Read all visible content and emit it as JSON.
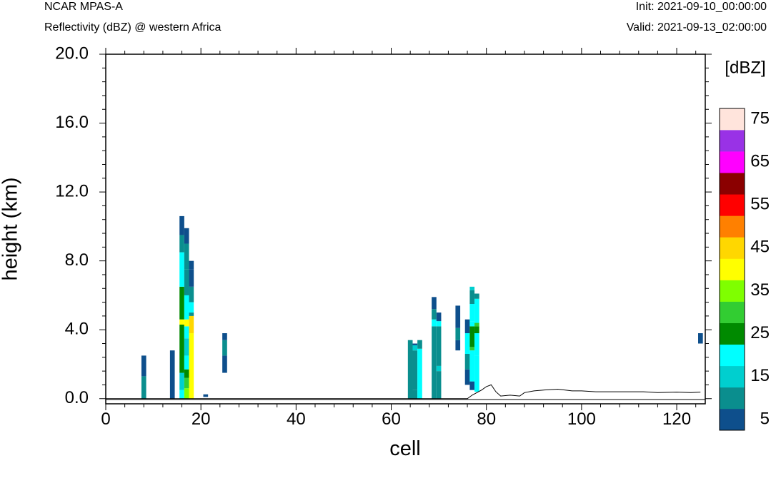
{
  "header": {
    "model": "NCAR MPAS-A",
    "field": "Reflectivity (dBZ) @ western Africa",
    "init": "Init: 2021-09-10_00:00:00",
    "valid": "Valid: 2021-09-13_02:00:00"
  },
  "chart_data": {
    "type": "heatmap",
    "title": "Reflectivity (dBZ) @ western Africa",
    "xlabel": "cell",
    "ylabel": "height (km)",
    "xlim": [
      0,
      126
    ],
    "ylim": [
      -0.3,
      20.0
    ],
    "x_ticks": [
      0,
      20,
      40,
      60,
      80,
      100,
      120
    ],
    "x_tick_labels": [
      "0",
      "20",
      "40",
      "60",
      "80",
      "100",
      "120"
    ],
    "y_ticks": [
      0,
      4,
      8,
      12,
      16,
      20
    ],
    "y_tick_labels": [
      "0.0",
      "4.0",
      "8.0",
      "12.0",
      "16.0",
      "20.0"
    ],
    "colorbar": {
      "units": "[dBZ]",
      "levels": [
        5,
        10,
        15,
        20,
        25,
        30,
        35,
        40,
        45,
        50,
        55,
        60,
        65,
        70,
        75
      ],
      "tick_labels": [
        "5",
        "15",
        "25",
        "35",
        "45",
        "55",
        "65",
        "75"
      ],
      "colors": [
        "#0e4f8c",
        "#0a8e8e",
        "#00cfcf",
        "#00ffff",
        "#008a00",
        "#32cd32",
        "#7fff00",
        "#ffff00",
        "#ffd700",
        "#ff8000",
        "#ff0000",
        "#8b0000",
        "#ff00ff",
        "#9932e6",
        "#ffe4dc"
      ]
    },
    "cells": [
      {
        "x": 8,
        "segments": [
          [
            0,
            1.3,
            10
          ],
          [
            1.3,
            2.5,
            5
          ]
        ]
      },
      {
        "x": 14,
        "segments": [
          [
            0,
            2.8,
            5
          ]
        ]
      },
      {
        "x": 16,
        "segments": [
          [
            0,
            0.5,
            20
          ],
          [
            0.5,
            1.5,
            15
          ],
          [
            1.5,
            4.3,
            25
          ],
          [
            4.3,
            4.6,
            40
          ],
          [
            4.6,
            6.5,
            25
          ],
          [
            6.5,
            8.5,
            20
          ],
          [
            8.5,
            9.5,
            10
          ],
          [
            9.5,
            10.6,
            5
          ]
        ]
      },
      {
        "x": 17,
        "segments": [
          [
            0,
            0.6,
            35
          ],
          [
            0.6,
            1.2,
            30
          ],
          [
            1.2,
            1.7,
            25
          ],
          [
            1.7,
            2.5,
            20
          ],
          [
            2.5,
            3.5,
            15
          ],
          [
            3.5,
            4.2,
            20
          ],
          [
            4.2,
            4.6,
            40
          ],
          [
            4.6,
            6.0,
            20
          ],
          [
            6.0,
            7.5,
            10
          ],
          [
            7.5,
            9.0,
            10
          ],
          [
            9.0,
            9.9,
            5
          ]
        ]
      },
      {
        "x": 18,
        "segments": [
          [
            0,
            3.8,
            40
          ],
          [
            3.8,
            4.8,
            45
          ],
          [
            4.8,
            5.0,
            10
          ],
          [
            5.0,
            5.6,
            20
          ],
          [
            5.6,
            6.5,
            10
          ],
          [
            6.5,
            7.5,
            5
          ],
          [
            7.5,
            8.0,
            5
          ]
        ]
      },
      {
        "x": 21,
        "segments": [
          [
            0.1,
            0.25,
            5
          ]
        ]
      },
      {
        "x": 25,
        "segments": [
          [
            1.5,
            2.5,
            5
          ],
          [
            2.5,
            3.4,
            10
          ],
          [
            3.4,
            3.8,
            5
          ]
        ]
      },
      {
        "x": 64,
        "segments": [
          [
            0,
            3.4,
            10
          ]
        ]
      },
      {
        "x": 65,
        "segments": [
          [
            0,
            0.5,
            10
          ],
          [
            0.5,
            2.8,
            10
          ],
          [
            2.8,
            3.1,
            15
          ],
          [
            3.1,
            3.2,
            5
          ]
        ]
      },
      {
        "x": 66,
        "segments": [
          [
            0,
            2.9,
            20
          ],
          [
            2.9,
            3.4,
            10
          ]
        ]
      },
      {
        "x": 69,
        "segments": [
          [
            0,
            4.2,
            10
          ],
          [
            4.2,
            4.6,
            20
          ],
          [
            4.6,
            5.2,
            10
          ],
          [
            5.2,
            5.9,
            5
          ]
        ]
      },
      {
        "x": 70,
        "segments": [
          [
            0,
            1.6,
            10
          ],
          [
            1.6,
            1.9,
            15
          ],
          [
            1.9,
            4.2,
            10
          ],
          [
            4.2,
            4.5,
            20
          ],
          [
            4.5,
            5.0,
            5
          ]
        ]
      },
      {
        "x": 74,
        "segments": [
          [
            2.8,
            3.4,
            5
          ],
          [
            3.4,
            4.1,
            10
          ],
          [
            4.1,
            5.4,
            5
          ]
        ]
      },
      {
        "x": 76,
        "segments": [
          [
            0.8,
            1.7,
            5
          ],
          [
            1.7,
            2.6,
            10
          ],
          [
            2.6,
            3.8,
            20
          ],
          [
            3.8,
            4.6,
            5
          ]
        ]
      },
      {
        "x": 77,
        "segments": [
          [
            0.5,
            1.0,
            5
          ],
          [
            1.0,
            2.8,
            20
          ],
          [
            2.8,
            3.0,
            30
          ],
          [
            3.0,
            4.2,
            25
          ],
          [
            4.2,
            4.5,
            20
          ],
          [
            4.5,
            5.5,
            20
          ],
          [
            5.5,
            6.3,
            10
          ],
          [
            6.3,
            6.5,
            15
          ]
        ]
      },
      {
        "x": 78,
        "segments": [
          [
            0.4,
            2.5,
            20
          ],
          [
            2.5,
            3.8,
            20
          ],
          [
            3.8,
            4.2,
            25
          ],
          [
            4.2,
            4.4,
            30
          ],
          [
            4.4,
            5.8,
            20
          ],
          [
            5.8,
            6.1,
            10
          ]
        ]
      },
      {
        "x": 125,
        "segments": [
          [
            3.2,
            3.8,
            5
          ]
        ]
      }
    ],
    "terrain": {
      "x": [
        0,
        76,
        77,
        79,
        80,
        81,
        82,
        83,
        85,
        87,
        88,
        90,
        92,
        95,
        98,
        100,
        103,
        106,
        110,
        113,
        116,
        120,
        123,
        125
      ],
      "y": [
        0,
        0,
        0.2,
        0.5,
        0.7,
        0.8,
        0.4,
        0.15,
        0.2,
        0.15,
        0.35,
        0.45,
        0.5,
        0.55,
        0.45,
        0.45,
        0.4,
        0.4,
        0.4,
        0.4,
        0.35,
        0.38,
        0.35,
        0.38
      ]
    }
  }
}
